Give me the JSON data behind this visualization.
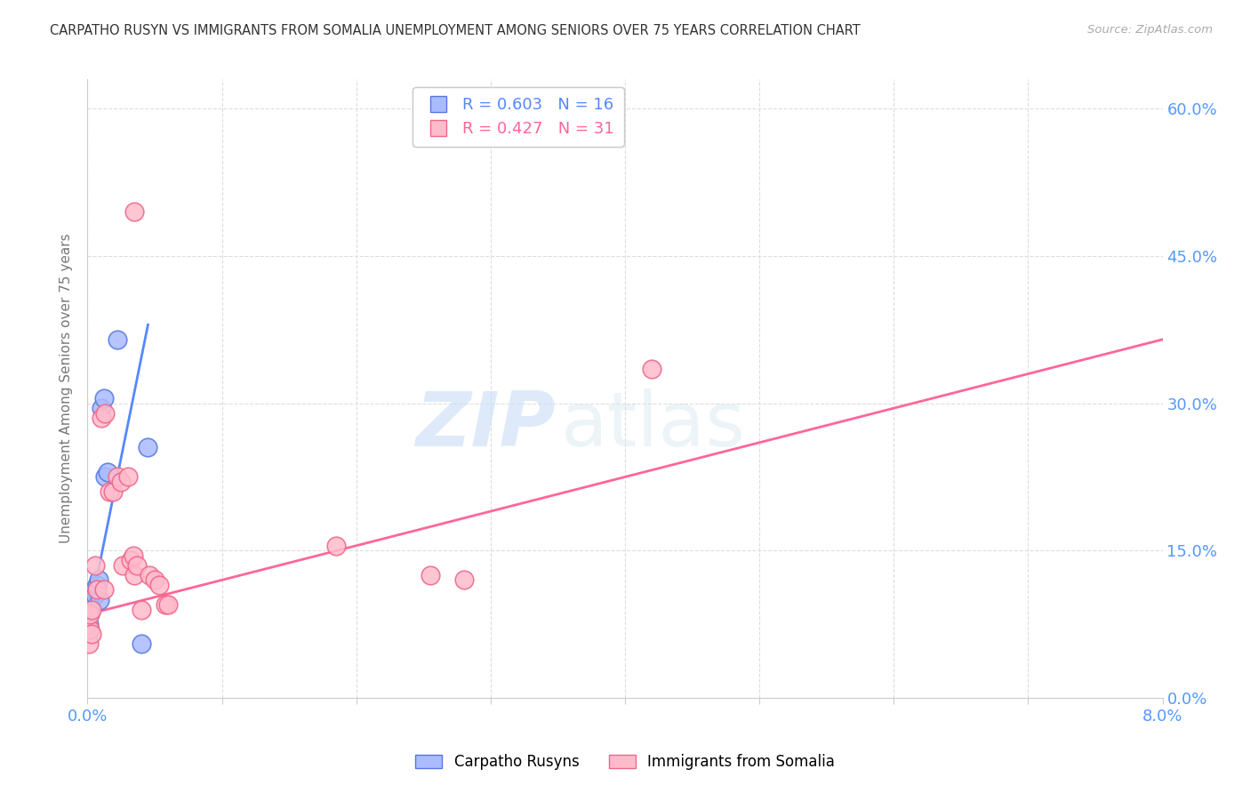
{
  "title": "CARPATHO RUSYN VS IMMIGRANTS FROM SOMALIA UNEMPLOYMENT AMONG SENIORS OVER 75 YEARS CORRELATION CHART",
  "source": "Source: ZipAtlas.com",
  "ylabel": "Unemployment Among Seniors over 75 years",
  "ylabel_tick_vals": [
    0.0,
    15.0,
    30.0,
    45.0,
    60.0
  ],
  "xtick_vals": [
    0.0,
    1.0,
    2.0,
    3.0,
    4.0,
    5.0,
    6.0,
    7.0,
    8.0
  ],
  "legend_blue_label": "R = 0.603   N = 16",
  "legend_pink_label": "R = 0.427   N = 31",
  "legend_label_blue": "Carpatho Rusyns",
  "legend_label_pink": "Immigrants from Somalia",
  "watermark_zip": "ZIP",
  "watermark_atlas": "atlas",
  "blue_scatter": [
    [
      0.02,
      10.0
    ],
    [
      0.02,
      9.5
    ],
    [
      0.05,
      11.0
    ],
    [
      0.06,
      10.5
    ],
    [
      0.07,
      11.5
    ],
    [
      0.08,
      12.0
    ],
    [
      0.09,
      10.0
    ],
    [
      0.1,
      29.5
    ],
    [
      0.12,
      30.5
    ],
    [
      0.13,
      22.5
    ],
    [
      0.15,
      23.0
    ],
    [
      0.22,
      36.5
    ],
    [
      0.4,
      5.5
    ],
    [
      0.45,
      25.5
    ],
    [
      0.01,
      8.5
    ],
    [
      0.01,
      7.5
    ]
  ],
  "pink_scatter": [
    [
      0.01,
      5.5
    ],
    [
      0.02,
      7.0
    ],
    [
      0.02,
      8.5
    ],
    [
      0.03,
      6.5
    ],
    [
      0.03,
      9.0
    ],
    [
      0.06,
      13.5
    ],
    [
      0.07,
      11.0
    ],
    [
      0.1,
      28.5
    ],
    [
      0.12,
      11.0
    ],
    [
      0.13,
      29.0
    ],
    [
      0.16,
      21.0
    ],
    [
      0.19,
      21.0
    ],
    [
      0.22,
      22.5
    ],
    [
      0.25,
      22.0
    ],
    [
      0.26,
      13.5
    ],
    [
      0.3,
      22.5
    ],
    [
      0.32,
      14.0
    ],
    [
      0.34,
      14.5
    ],
    [
      0.35,
      12.5
    ],
    [
      0.37,
      13.5
    ],
    [
      0.4,
      9.0
    ],
    [
      0.46,
      12.5
    ],
    [
      0.5,
      12.0
    ],
    [
      0.53,
      11.5
    ],
    [
      0.58,
      9.5
    ],
    [
      0.6,
      9.5
    ],
    [
      1.85,
      15.5
    ],
    [
      2.55,
      12.5
    ],
    [
      2.8,
      12.0
    ],
    [
      4.2,
      33.5
    ],
    [
      0.35,
      49.5
    ]
  ],
  "blue_line_x": [
    0.0,
    0.45
  ],
  "blue_line_y": [
    7.5,
    38.0
  ],
  "pink_line_x": [
    0.0,
    8.0
  ],
  "pink_line_y": [
    8.5,
    36.5
  ],
  "blue_line_color": "#5588ff",
  "pink_line_color": "#ff6699",
  "blue_scatter_color": "#aabbff",
  "pink_scatter_color": "#ffbbcc",
  "blue_edge_color": "#5577dd",
  "pink_edge_color": "#ee6688",
  "bg_color": "#ffffff",
  "grid_color": "#dddddd",
  "title_color": "#333333",
  "source_color": "#aaaaaa",
  "axis_tick_color": "#5599ff"
}
